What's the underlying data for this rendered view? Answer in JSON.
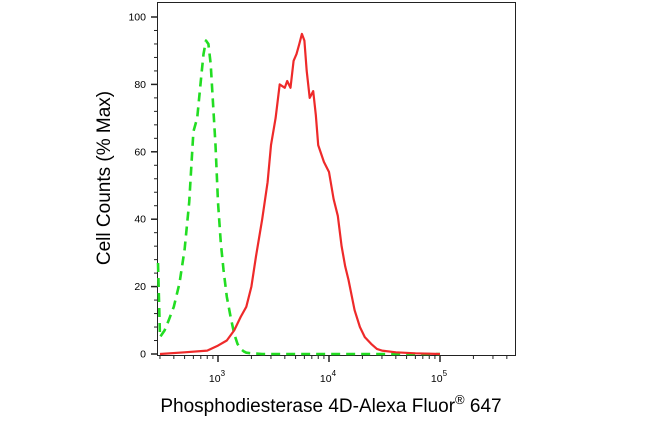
{
  "chart_data": {
    "type": "line",
    "title": "",
    "xlabel": "Phosphodiesterase 4D-Alexa Fluor",
    "xlabel_sup": "®",
    "xlabel_suffix": " 647",
    "ylabel": "Cell Counts (% Max)",
    "xscale": "log",
    "xlim": [
      270,
      200000
    ],
    "ylim": [
      0,
      100
    ],
    "x_ticks": [
      {
        "value": 1000,
        "base": "10",
        "exp": "3"
      },
      {
        "value": 10000,
        "base": "10",
        "exp": "4"
      },
      {
        "value": 100000,
        "base": "10",
        "exp": "5"
      }
    ],
    "y_ticks": [
      0,
      20,
      40,
      60,
      80,
      100
    ],
    "grid": false,
    "legend": "none",
    "series": [
      {
        "color": "#22dd22",
        "style": "dashed",
        "x": [
          280,
          300,
          330,
          360,
          400,
          450,
          500,
          550,
          600,
          650,
          700,
          740,
          780,
          820,
          860,
          900,
          950,
          1000,
          1060,
          1120,
          1200,
          1300,
          1400,
          1500,
          1600,
          1700,
          1800,
          2000,
          2500,
          3000,
          10000,
          100000
        ],
        "y": [
          27,
          5,
          7,
          10,
          14,
          21,
          31,
          45,
          66,
          70,
          81,
          89,
          93,
          92,
          86,
          75,
          62,
          45,
          33,
          25,
          17,
          11,
          6,
          3,
          1.5,
          0.8,
          0.4,
          0.2,
          0,
          0,
          0,
          0
        ]
      },
      {
        "color": "#ee2a2a",
        "style": "solid",
        "x": [
          300,
          500,
          800,
          1000,
          1200,
          1400,
          1600,
          1800,
          2000,
          2200,
          2500,
          2800,
          3000,
          3300,
          3600,
          4000,
          4200,
          4500,
          4800,
          5100,
          5400,
          5700,
          6000,
          6300,
          6700,
          7200,
          7600,
          8000,
          9000,
          10000,
          11000,
          12000,
          13000,
          14000,
          15000,
          17000,
          19000,
          21000,
          24000,
          27000,
          30000,
          40000,
          60000,
          100000
        ],
        "y": [
          0,
          0.5,
          1,
          2.5,
          4,
          7,
          11,
          14,
          20,
          29,
          40,
          51,
          62,
          70,
          80,
          79,
          81,
          79,
          87,
          89,
          92,
          95,
          93,
          84,
          76,
          78,
          71,
          62,
          57,
          54,
          46,
          41,
          32,
          26,
          22,
          13,
          8,
          5,
          3,
          1.5,
          1,
          0.5,
          0.2,
          0
        ]
      }
    ]
  }
}
